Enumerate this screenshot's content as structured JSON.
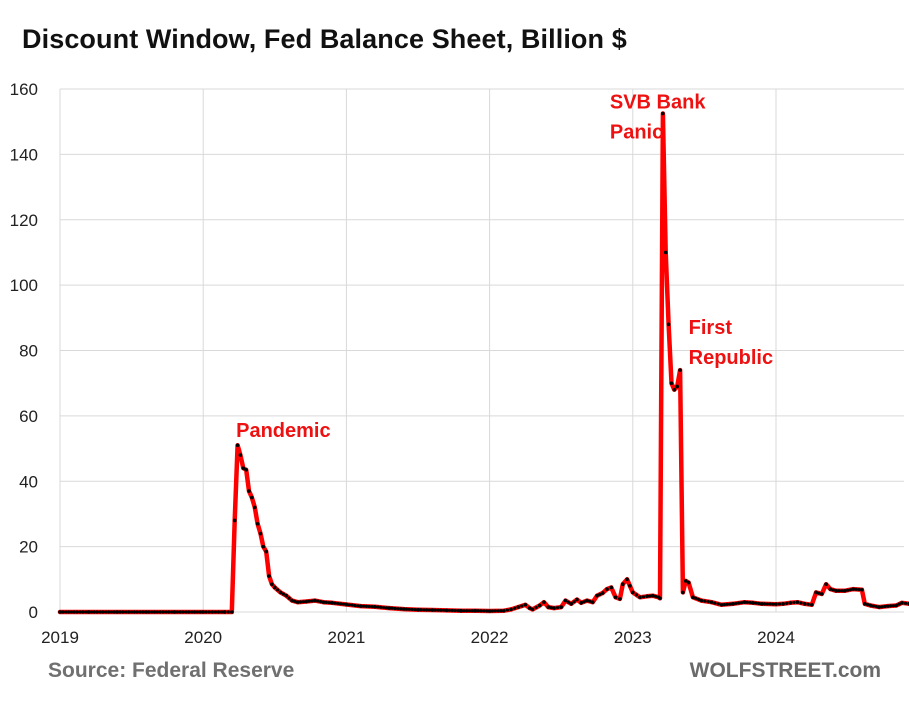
{
  "chart_data": {
    "type": "line",
    "title": "Discount Window, Fed Balance Sheet, Billion $",
    "xlabel": "",
    "ylabel": "",
    "ylim": [
      0,
      160
    ],
    "xlim": [
      2019,
      2024.93
    ],
    "y_ticks": [
      "0",
      "20",
      "40",
      "60",
      "80",
      "100",
      "120",
      "140",
      "160"
    ],
    "x_ticks": [
      "2019",
      "2020",
      "2021",
      "2022",
      "2023",
      "2024"
    ],
    "grid": true,
    "line_color": "#ff0000",
    "marker_color": "#000000",
    "series": [
      {
        "name": "Discount Window",
        "points": [
          [
            2019.0,
            0
          ],
          [
            2019.2,
            0
          ],
          [
            2019.4,
            0
          ],
          [
            2019.6,
            0
          ],
          [
            2019.8,
            0
          ],
          [
            2020.0,
            0
          ],
          [
            2020.15,
            0
          ],
          [
            2020.2,
            0
          ],
          [
            2020.22,
            28
          ],
          [
            2020.24,
            51
          ],
          [
            2020.26,
            48
          ],
          [
            2020.28,
            44
          ],
          [
            2020.3,
            43.5
          ],
          [
            2020.32,
            37
          ],
          [
            2020.34,
            35
          ],
          [
            2020.36,
            32
          ],
          [
            2020.38,
            27
          ],
          [
            2020.4,
            24
          ],
          [
            2020.42,
            20
          ],
          [
            2020.44,
            18.5
          ],
          [
            2020.46,
            11
          ],
          [
            2020.48,
            8.5
          ],
          [
            2020.5,
            7.5
          ],
          [
            2020.54,
            6
          ],
          [
            2020.58,
            5
          ],
          [
            2020.62,
            3.5
          ],
          [
            2020.66,
            3
          ],
          [
            2020.72,
            3.2
          ],
          [
            2020.78,
            3.5
          ],
          [
            2020.84,
            3
          ],
          [
            2020.9,
            2.8
          ],
          [
            2021.0,
            2.3
          ],
          [
            2021.1,
            1.8
          ],
          [
            2021.2,
            1.6
          ],
          [
            2021.3,
            1.2
          ],
          [
            2021.4,
            0.9
          ],
          [
            2021.5,
            0.7
          ],
          [
            2021.6,
            0.6
          ],
          [
            2021.7,
            0.5
          ],
          [
            2021.8,
            0.4
          ],
          [
            2021.9,
            0.4
          ],
          [
            2022.0,
            0.3
          ],
          [
            2022.1,
            0.4
          ],
          [
            2022.15,
            0.8
          ],
          [
            2022.2,
            1.5
          ],
          [
            2022.25,
            2.2
          ],
          [
            2022.28,
            1.2
          ],
          [
            2022.3,
            0.8
          ],
          [
            2022.35,
            2
          ],
          [
            2022.38,
            3
          ],
          [
            2022.41,
            1.5
          ],
          [
            2022.45,
            1.2
          ],
          [
            2022.5,
            1.5
          ],
          [
            2022.53,
            3.5
          ],
          [
            2022.57,
            2.5
          ],
          [
            2022.61,
            3.8
          ],
          [
            2022.64,
            2.8
          ],
          [
            2022.68,
            3.5
          ],
          [
            2022.72,
            3
          ],
          [
            2022.75,
            5
          ],
          [
            2022.79,
            5.8
          ],
          [
            2022.82,
            7
          ],
          [
            2022.85,
            7.5
          ],
          [
            2022.88,
            4.5
          ],
          [
            2022.91,
            4
          ],
          [
            2022.93,
            8.5
          ],
          [
            2022.96,
            10
          ],
          [
            2022.98,
            8
          ],
          [
            2023.0,
            6
          ],
          [
            2023.05,
            4.5
          ],
          [
            2023.1,
            4.8
          ],
          [
            2023.14,
            5
          ],
          [
            2023.18,
            4.5
          ],
          [
            2023.19,
            4.2
          ],
          [
            2023.21,
            152.5
          ],
          [
            2023.23,
            110
          ],
          [
            2023.25,
            88
          ],
          [
            2023.27,
            70
          ],
          [
            2023.29,
            68
          ],
          [
            2023.31,
            69
          ],
          [
            2023.33,
            74
          ],
          [
            2023.35,
            6
          ],
          [
            2023.37,
            9.5
          ],
          [
            2023.39,
            9
          ],
          [
            2023.42,
            4.5
          ],
          [
            2023.48,
            3.5
          ],
          [
            2023.55,
            3
          ],
          [
            2023.62,
            2.2
          ],
          [
            2023.7,
            2.5
          ],
          [
            2023.78,
            3
          ],
          [
            2023.84,
            2.8
          ],
          [
            2023.9,
            2.5
          ],
          [
            2024.0,
            2.4
          ],
          [
            2024.05,
            2.5
          ],
          [
            2024.1,
            2.8
          ],
          [
            2024.15,
            3
          ],
          [
            2024.2,
            2.5
          ],
          [
            2024.25,
            2.2
          ],
          [
            2024.28,
            6
          ],
          [
            2024.32,
            5.5
          ],
          [
            2024.35,
            8.5
          ],
          [
            2024.38,
            7
          ],
          [
            2024.42,
            6.5
          ],
          [
            2024.48,
            6.5
          ],
          [
            2024.54,
            7
          ],
          [
            2024.6,
            6.8
          ],
          [
            2024.62,
            2.5
          ],
          [
            2024.66,
            2
          ],
          [
            2024.72,
            1.5
          ],
          [
            2024.78,
            1.8
          ],
          [
            2024.84,
            2
          ],
          [
            2024.88,
            2.8
          ],
          [
            2024.93,
            2.5
          ]
        ]
      }
    ],
    "annotations": [
      {
        "lines": [
          "Pandemic"
        ],
        "x": 2020.23,
        "y": 53.5,
        "anchor": "start"
      },
      {
        "lines": [
          "SVB Bank",
          "Panic"
        ],
        "x": 2022.84,
        "y": 154,
        "anchor": "start"
      },
      {
        "lines": [
          "First",
          "Republic"
        ],
        "x": 2023.39,
        "y": 85,
        "anchor": "start"
      }
    ]
  },
  "footer": {
    "source": "Source: Federal Reserve",
    "brand": "WOLFSTREET.com"
  }
}
